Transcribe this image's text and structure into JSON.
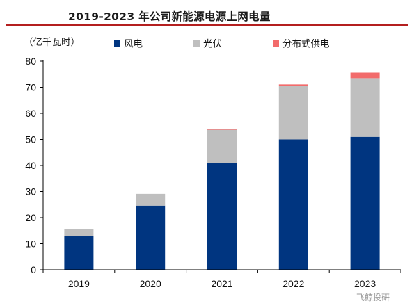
{
  "header": {
    "title": "2019-2023 年公司新能源电源上网电量",
    "unit": "（亿千瓦时）"
  },
  "watermark": "飞鲸投研",
  "colors": {
    "wind": "#003580",
    "solar": "#bfbfbf",
    "distributed": "#f26b6b",
    "title_rule": "#b41f1f"
  },
  "chart_data": {
    "type": "bar",
    "stacked": true,
    "title": "2019-2023 年公司新能源电源上网电量",
    "ylabel": "（亿千瓦时）",
    "xlabel": "",
    "categories": [
      "2019",
      "2020",
      "2021",
      "2022",
      "2023"
    ],
    "ylim": [
      0,
      80
    ],
    "yticks": [
      0,
      10,
      20,
      30,
      40,
      50,
      60,
      70,
      80
    ],
    "legend_position": "top",
    "grid": false,
    "series": [
      {
        "name": "风电",
        "values": [
          12.8,
          24.6,
          41.0,
          50.0,
          51.0
        ]
      },
      {
        "name": "光伏",
        "values": [
          2.8,
          4.5,
          12.7,
          20.5,
          22.5
        ]
      },
      {
        "name": "分布式供电",
        "values": [
          0,
          0,
          0.4,
          0.6,
          2.1
        ]
      }
    ]
  }
}
